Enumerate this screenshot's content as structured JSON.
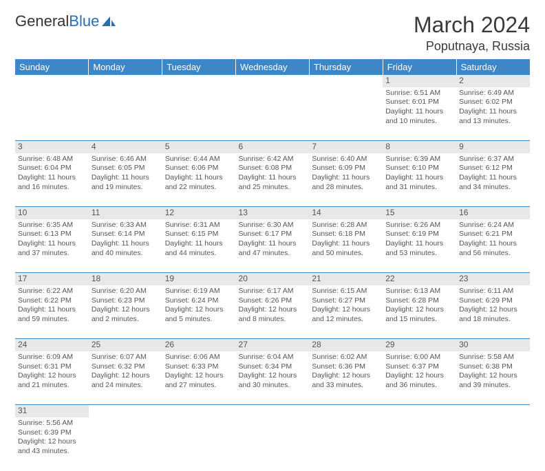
{
  "logo": {
    "text1": "General",
    "text2": "Blue",
    "icon_color": "#2a6fb5"
  },
  "title": "March 2024",
  "location": "Poputnaya, Russia",
  "header_bg": "#3f86c7",
  "daynum_bg": "#e8e8e8",
  "text_color": "#4a4a4a",
  "weekdays": [
    "Sunday",
    "Monday",
    "Tuesday",
    "Wednesday",
    "Thursday",
    "Friday",
    "Saturday"
  ],
  "weeks": [
    {
      "nums": [
        "",
        "",
        "",
        "",
        "",
        "1",
        "2"
      ],
      "cells": [
        null,
        null,
        null,
        null,
        null,
        {
          "sunrise": "Sunrise: 6:51 AM",
          "sunset": "Sunset: 6:01 PM",
          "day1": "Daylight: 11 hours",
          "day2": "and 10 minutes."
        },
        {
          "sunrise": "Sunrise: 6:49 AM",
          "sunset": "Sunset: 6:02 PM",
          "day1": "Daylight: 11 hours",
          "day2": "and 13 minutes."
        }
      ]
    },
    {
      "nums": [
        "3",
        "4",
        "5",
        "6",
        "7",
        "8",
        "9"
      ],
      "cells": [
        {
          "sunrise": "Sunrise: 6:48 AM",
          "sunset": "Sunset: 6:04 PM",
          "day1": "Daylight: 11 hours",
          "day2": "and 16 minutes."
        },
        {
          "sunrise": "Sunrise: 6:46 AM",
          "sunset": "Sunset: 6:05 PM",
          "day1": "Daylight: 11 hours",
          "day2": "and 19 minutes."
        },
        {
          "sunrise": "Sunrise: 6:44 AM",
          "sunset": "Sunset: 6:06 PM",
          "day1": "Daylight: 11 hours",
          "day2": "and 22 minutes."
        },
        {
          "sunrise": "Sunrise: 6:42 AM",
          "sunset": "Sunset: 6:08 PM",
          "day1": "Daylight: 11 hours",
          "day2": "and 25 minutes."
        },
        {
          "sunrise": "Sunrise: 6:40 AM",
          "sunset": "Sunset: 6:09 PM",
          "day1": "Daylight: 11 hours",
          "day2": "and 28 minutes."
        },
        {
          "sunrise": "Sunrise: 6:39 AM",
          "sunset": "Sunset: 6:10 PM",
          "day1": "Daylight: 11 hours",
          "day2": "and 31 minutes."
        },
        {
          "sunrise": "Sunrise: 6:37 AM",
          "sunset": "Sunset: 6:12 PM",
          "day1": "Daylight: 11 hours",
          "day2": "and 34 minutes."
        }
      ]
    },
    {
      "nums": [
        "10",
        "11",
        "12",
        "13",
        "14",
        "15",
        "16"
      ],
      "cells": [
        {
          "sunrise": "Sunrise: 6:35 AM",
          "sunset": "Sunset: 6:13 PM",
          "day1": "Daylight: 11 hours",
          "day2": "and 37 minutes."
        },
        {
          "sunrise": "Sunrise: 6:33 AM",
          "sunset": "Sunset: 6:14 PM",
          "day1": "Daylight: 11 hours",
          "day2": "and 40 minutes."
        },
        {
          "sunrise": "Sunrise: 6:31 AM",
          "sunset": "Sunset: 6:15 PM",
          "day1": "Daylight: 11 hours",
          "day2": "and 44 minutes."
        },
        {
          "sunrise": "Sunrise: 6:30 AM",
          "sunset": "Sunset: 6:17 PM",
          "day1": "Daylight: 11 hours",
          "day2": "and 47 minutes."
        },
        {
          "sunrise": "Sunrise: 6:28 AM",
          "sunset": "Sunset: 6:18 PM",
          "day1": "Daylight: 11 hours",
          "day2": "and 50 minutes."
        },
        {
          "sunrise": "Sunrise: 6:26 AM",
          "sunset": "Sunset: 6:19 PM",
          "day1": "Daylight: 11 hours",
          "day2": "and 53 minutes."
        },
        {
          "sunrise": "Sunrise: 6:24 AM",
          "sunset": "Sunset: 6:21 PM",
          "day1": "Daylight: 11 hours",
          "day2": "and 56 minutes."
        }
      ]
    },
    {
      "nums": [
        "17",
        "18",
        "19",
        "20",
        "21",
        "22",
        "23"
      ],
      "cells": [
        {
          "sunrise": "Sunrise: 6:22 AM",
          "sunset": "Sunset: 6:22 PM",
          "day1": "Daylight: 11 hours",
          "day2": "and 59 minutes."
        },
        {
          "sunrise": "Sunrise: 6:20 AM",
          "sunset": "Sunset: 6:23 PM",
          "day1": "Daylight: 12 hours",
          "day2": "and 2 minutes."
        },
        {
          "sunrise": "Sunrise: 6:19 AM",
          "sunset": "Sunset: 6:24 PM",
          "day1": "Daylight: 12 hours",
          "day2": "and 5 minutes."
        },
        {
          "sunrise": "Sunrise: 6:17 AM",
          "sunset": "Sunset: 6:26 PM",
          "day1": "Daylight: 12 hours",
          "day2": "and 8 minutes."
        },
        {
          "sunrise": "Sunrise: 6:15 AM",
          "sunset": "Sunset: 6:27 PM",
          "day1": "Daylight: 12 hours",
          "day2": "and 12 minutes."
        },
        {
          "sunrise": "Sunrise: 6:13 AM",
          "sunset": "Sunset: 6:28 PM",
          "day1": "Daylight: 12 hours",
          "day2": "and 15 minutes."
        },
        {
          "sunrise": "Sunrise: 6:11 AM",
          "sunset": "Sunset: 6:29 PM",
          "day1": "Daylight: 12 hours",
          "day2": "and 18 minutes."
        }
      ]
    },
    {
      "nums": [
        "24",
        "25",
        "26",
        "27",
        "28",
        "29",
        "30"
      ],
      "cells": [
        {
          "sunrise": "Sunrise: 6:09 AM",
          "sunset": "Sunset: 6:31 PM",
          "day1": "Daylight: 12 hours",
          "day2": "and 21 minutes."
        },
        {
          "sunrise": "Sunrise: 6:07 AM",
          "sunset": "Sunset: 6:32 PM",
          "day1": "Daylight: 12 hours",
          "day2": "and 24 minutes."
        },
        {
          "sunrise": "Sunrise: 6:06 AM",
          "sunset": "Sunset: 6:33 PM",
          "day1": "Daylight: 12 hours",
          "day2": "and 27 minutes."
        },
        {
          "sunrise": "Sunrise: 6:04 AM",
          "sunset": "Sunset: 6:34 PM",
          "day1": "Daylight: 12 hours",
          "day2": "and 30 minutes."
        },
        {
          "sunrise": "Sunrise: 6:02 AM",
          "sunset": "Sunset: 6:36 PM",
          "day1": "Daylight: 12 hours",
          "day2": "and 33 minutes."
        },
        {
          "sunrise": "Sunrise: 6:00 AM",
          "sunset": "Sunset: 6:37 PM",
          "day1": "Daylight: 12 hours",
          "day2": "and 36 minutes."
        },
        {
          "sunrise": "Sunrise: 5:58 AM",
          "sunset": "Sunset: 6:38 PM",
          "day1": "Daylight: 12 hours",
          "day2": "and 39 minutes."
        }
      ]
    },
    {
      "nums": [
        "31",
        "",
        "",
        "",
        "",
        "",
        ""
      ],
      "cells": [
        {
          "sunrise": "Sunrise: 5:56 AM",
          "sunset": "Sunset: 6:39 PM",
          "day1": "Daylight: 12 hours",
          "day2": "and 43 minutes."
        },
        null,
        null,
        null,
        null,
        null,
        null
      ]
    }
  ]
}
